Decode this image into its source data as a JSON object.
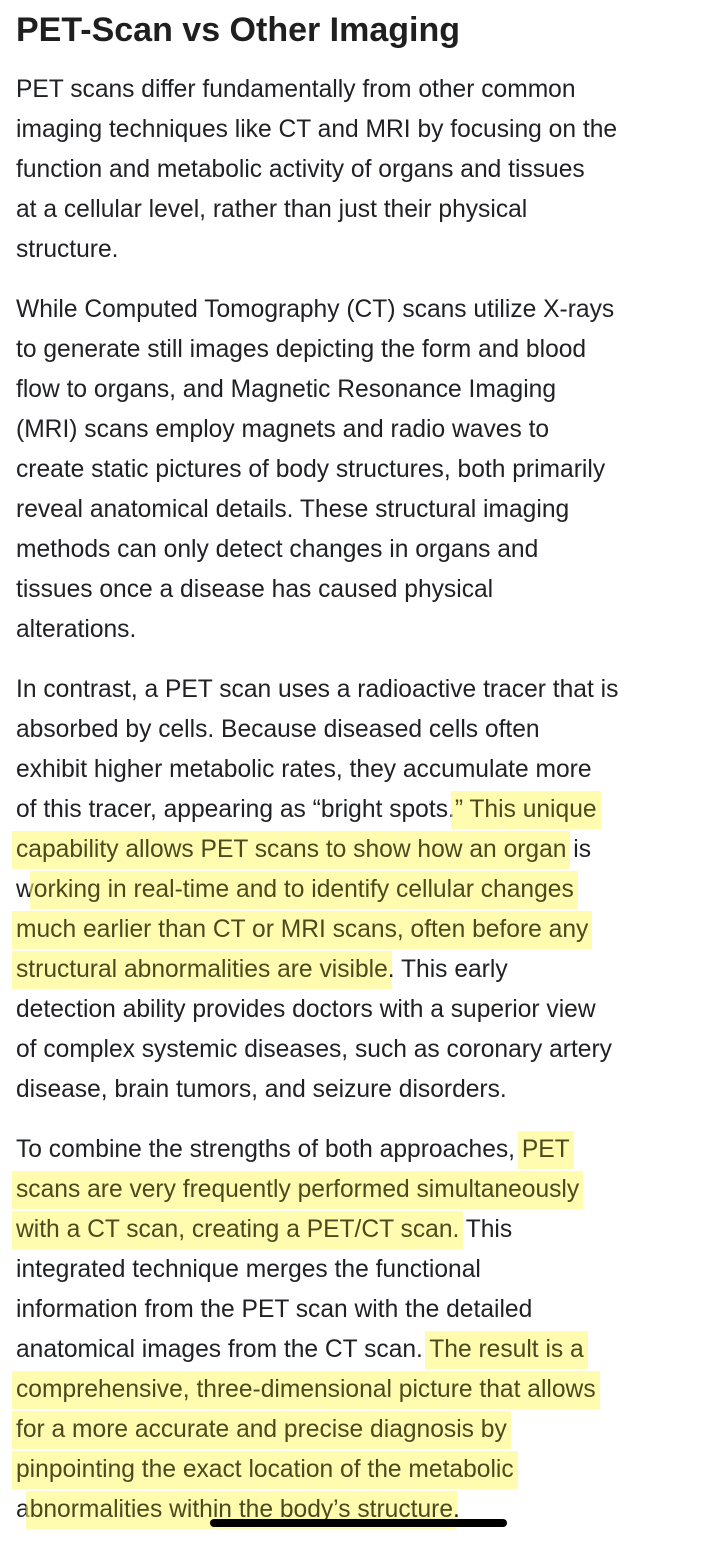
{
  "title": "PET-Scan vs Other Imaging",
  "paragraphs": [
    {
      "lines": [
        [
          {
            "t": "PET scans differ fundamentally from other common",
            "hl": false
          }
        ],
        [
          {
            "t": "imaging techniques like CT and MRI by focusing on the",
            "hl": false
          }
        ],
        [
          {
            "t": "function and metabolic activity of organs and tissues",
            "hl": false
          }
        ],
        [
          {
            "t": "at a cellular level, rather than just their physical",
            "hl": false
          }
        ],
        [
          {
            "t": "structure.",
            "hl": false
          }
        ]
      ]
    },
    {
      "lines": [
        [
          {
            "t": "While Computed Tomography (CT) scans utilize X-rays",
            "hl": false
          }
        ],
        [
          {
            "t": "to generate still images depicting the form and blood",
            "hl": false
          }
        ],
        [
          {
            "t": "flow to organs, and Magnetic Resonance Imaging",
            "hl": false
          }
        ],
        [
          {
            "t": "(MRI) scans employ magnets and radio waves to",
            "hl": false
          }
        ],
        [
          {
            "t": "create static pictures of body structures, both primarily",
            "hl": false
          }
        ],
        [
          {
            "t": "reveal anatomical details. These structural imaging",
            "hl": false
          }
        ],
        [
          {
            "t": "methods can only detect changes in organs and",
            "hl": false
          }
        ],
        [
          {
            "t": "tissues once a disease has caused physical",
            "hl": false
          }
        ],
        [
          {
            "t": "alterations.",
            "hl": false
          }
        ]
      ]
    },
    {
      "lines": [
        [
          {
            "t": "In contrast, a PET scan uses a radioactive tracer that is",
            "hl": false
          }
        ],
        [
          {
            "t": "absorbed by cells. Because diseased cells often",
            "hl": false
          }
        ],
        [
          {
            "t": "exhibit higher metabolic rates, they accumulate more",
            "hl": false
          }
        ],
        [
          {
            "t": "of this tracer, appearing as “bright spots.",
            "hl": false
          },
          {
            "t": "” This unique",
            "hl": true
          }
        ],
        [
          {
            "t": "capability allows PET scans to show how an organ",
            "hl": true
          },
          {
            "t": " is",
            "hl": false
          }
        ],
        [
          {
            "t": "w",
            "hl": false
          },
          {
            "t": "orking in real-time and to identify cellular changes",
            "hl": true
          }
        ],
        [
          {
            "t": "much earlier than CT or MRI scans, often before any",
            "hl": true
          }
        ],
        [
          {
            "t": "structural abnormalities are visible",
            "hl": true
          },
          {
            "t": ". This early",
            "hl": false
          }
        ],
        [
          {
            "t": "detection ability provides doctors with a superior view",
            "hl": false
          }
        ],
        [
          {
            "t": "of complex systemic diseases, such as coronary artery",
            "hl": false
          }
        ],
        [
          {
            "t": "disease, brain tumors, and seizure disorders.",
            "hl": false
          }
        ]
      ]
    },
    {
      "lines": [
        [
          {
            "t": "To combine the strengths of both approaches, ",
            "hl": false
          },
          {
            "t": "PET",
            "hl": true
          }
        ],
        [
          {
            "t": "scans are very frequently performed simultaneously",
            "hl": true
          }
        ],
        [
          {
            "t": "with a CT scan, creating a PET/CT scan.",
            "hl": true
          },
          {
            "t": " This",
            "hl": false
          }
        ],
        [
          {
            "t": "integrated technique merges the functional",
            "hl": false
          }
        ],
        [
          {
            "t": "information from the PET scan with the detailed",
            "hl": false
          }
        ],
        [
          {
            "t": "anatomical images from the CT scan. ",
            "hl": false
          },
          {
            "t": "The result is a",
            "hl": true
          }
        ],
        [
          {
            "t": "comprehensive, three-dimensional picture that allows",
            "hl": true
          }
        ],
        [
          {
            "t": "for a more accurate and precise diagnosis by",
            "hl": true
          }
        ],
        [
          {
            "t": "pinpointing the exact location of the metabolic",
            "hl": true
          }
        ],
        [
          {
            "t": "a",
            "hl": false
          },
          {
            "t": "bnormalities within the body’s structure",
            "hl": true
          },
          {
            "t": ".",
            "hl": false
          }
        ]
      ]
    }
  ],
  "colors": {
    "highlight": "#fff96e",
    "highlighted_text": "#4b4a1e",
    "text": "#202124"
  }
}
